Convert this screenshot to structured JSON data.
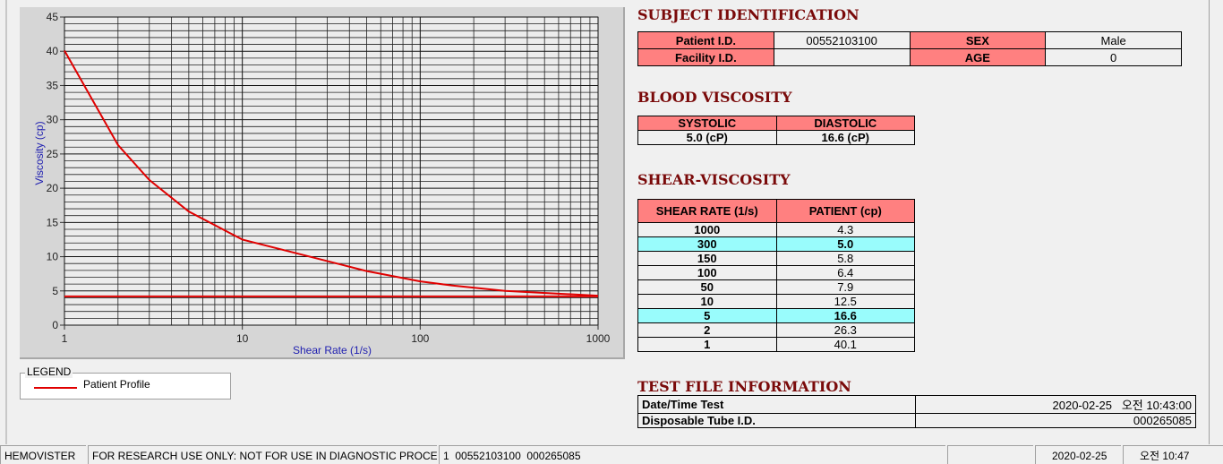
{
  "chart_data": {
    "type": "line",
    "x_label": "Shear Rate (1/s)",
    "y_label": "Viscosity (cp)",
    "xlog": true,
    "xlim": [
      1,
      1000
    ],
    "xticks": [
      1,
      10,
      100,
      1000
    ],
    "ylim": [
      0,
      45
    ],
    "yticks": [
      0,
      5,
      10,
      15,
      20,
      25,
      30,
      35,
      40,
      45
    ],
    "grid": true,
    "minor_grid": true,
    "series": [
      {
        "name": "Patient Profile",
        "color": "#e00000",
        "x": [
          1,
          2,
          3,
          5,
          10,
          50,
          100,
          150,
          300,
          1000
        ],
        "values": [
          40.1,
          26.3,
          21.2,
          16.6,
          12.5,
          7.9,
          6.4,
          5.8,
          5.0,
          4.3
        ]
      },
      {
        "color": "#e00000",
        "x": [
          1,
          1000
        ],
        "values": [
          4.2,
          4.2
        ]
      }
    ]
  },
  "legend": {
    "title": "LEGEND"
  },
  "subject_identification": {
    "title": "SUBJECT IDENTIFICATION",
    "rows": [
      [
        "Patient I.D.",
        "00552103100",
        "SEX",
        "Male"
      ],
      [
        "Facility I.D.",
        null,
        "AGE",
        "0"
      ]
    ]
  },
  "blood_viscosity": {
    "title": "BLOOD VISCOSITY",
    "header": [
      "SYSTOLIC",
      "DIASTOLIC"
    ],
    "values": [
      "5.0 (cP)",
      "16.6 (cP)"
    ]
  },
  "shear_viscosity": {
    "title": "SHEAR-VISCOSITY",
    "header": [
      "SHEAR RATE (1/s)",
      "PATIENT (cp)"
    ],
    "rows": [
      [
        "1000",
        "4.3"
      ],
      [
        "300",
        "5.0"
      ],
      [
        "150",
        "5.8"
      ],
      [
        "100",
        "6.4"
      ],
      [
        "50",
        "7.9"
      ],
      [
        "10",
        "12.5"
      ],
      [
        "5",
        "16.6"
      ],
      [
        "2",
        "26.3"
      ],
      [
        "1",
        "40.1"
      ]
    ],
    "highlight_rows": [
      1,
      6
    ]
  },
  "test_file_information": {
    "title": "TEST FILE INFORMATION",
    "rows": [
      [
        "Date/Time Test",
        "2020-02-25   오전 10:43:00"
      ],
      [
        "Disposable Tube I.D.",
        "000265085"
      ]
    ]
  },
  "status_bar": [
    "HEMOVISTER",
    "FOR RESEARCH USE ONLY: NOT FOR USE IN DIAGNOSTIC PROCEDURES",
    "1  00552103100  000265085",
    "2020-02-25",
    "오전 10:47"
  ]
}
